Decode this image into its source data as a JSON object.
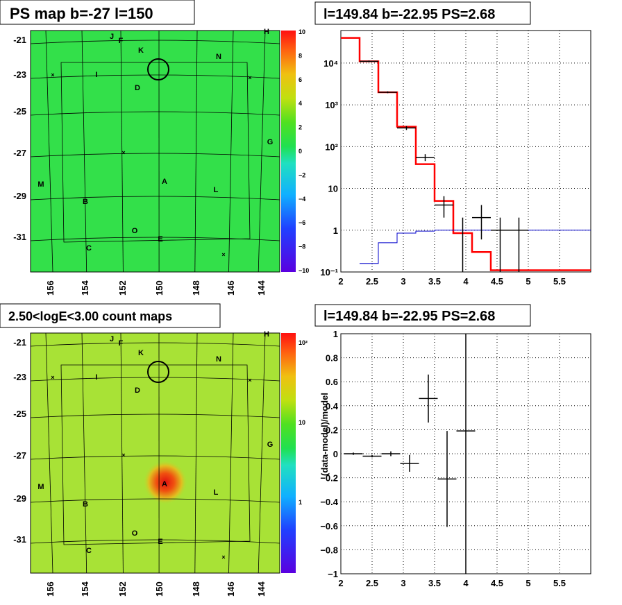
{
  "panels": {
    "tl_title": "PS map b=-27 l=150",
    "tr_title": "l=149.84 b=-22.95 PS=2.68",
    "bl_title": "2.50<logE<3.00 count maps",
    "br_title": "l=149.84 b=-22.95 PS=2.68"
  },
  "maps": {
    "lat_labels": [
      "-21",
      "-23",
      "-25",
      "-27",
      "-29",
      "-31"
    ],
    "lon_labels": [
      "156",
      "154",
      "152",
      "150",
      "148",
      "146",
      "144"
    ],
    "sources": [
      "J",
      "F",
      "K",
      "H",
      "N",
      "I",
      "D",
      "G",
      "M",
      "A",
      "L",
      "B",
      "O",
      "E",
      "C"
    ],
    "ps_scale": [
      "10",
      "8",
      "6",
      "4",
      "2",
      "0",
      "−2",
      "−4",
      "−6",
      "−8",
      "−10"
    ],
    "count_scale": [
      "10²",
      "10",
      "1"
    ],
    "colors": {
      "ps_bg": "#33e04a",
      "count_bg": "#a8e236",
      "hot": "#e8301a"
    }
  },
  "chart_data": [
    {
      "type": "line",
      "title": "l=149.84 b=-22.95 PS=2.68",
      "yscale": "log",
      "xlim": [
        2,
        6
      ],
      "ylim": [
        0.1,
        60000
      ],
      "xticks": [
        "2",
        "2.5",
        "3",
        "3.5",
        "4",
        "4.5",
        "5",
        "5.5"
      ],
      "yticks": [
        "10⁻¹",
        "1",
        "10",
        "10²",
        "10³",
        "10⁴"
      ],
      "series": [
        {
          "color": "#ff0000",
          "edges": [
            2,
            2.3,
            2.6,
            2.9,
            3.2,
            3.5,
            3.8,
            4.1,
            4.4,
            4.8,
            6
          ],
          "values": [
            40000,
            11000,
            2000,
            300,
            38,
            5,
            0.85,
            0.3,
            0.11,
            0.11
          ]
        },
        {
          "color": "#0000cc",
          "edges": [
            2.3,
            2.6,
            2.9,
            3.2,
            3.5,
            3.8,
            4.1,
            4.4,
            4.8,
            6
          ],
          "values": [
            0.16,
            0.5,
            0.85,
            0.95,
            1,
            1,
            1,
            1,
            1
          ]
        }
      ],
      "points": [
        {
          "x": 2.45,
          "y": 11000,
          "xerr": 0.15,
          "ylo": 10500,
          "yhi": 11500
        },
        {
          "x": 2.75,
          "y": 2000,
          "xerr": 0.15,
          "ylo": 1900,
          "yhi": 2100
        },
        {
          "x": 3.05,
          "y": 280,
          "xerr": 0.15,
          "ylo": 250,
          "yhi": 310
        },
        {
          "x": 3.35,
          "y": 55,
          "xerr": 0.15,
          "ylo": 45,
          "yhi": 66
        },
        {
          "x": 3.65,
          "y": 4,
          "xerr": 0.15,
          "ylo": 2,
          "yhi": 6.5
        },
        {
          "x": 3.95,
          "y": 0.1,
          "xerr": 0,
          "ylo": 0.1,
          "yhi": 2
        },
        {
          "x": 4.25,
          "y": 2,
          "xerr": 0.15,
          "ylo": 0.6,
          "yhi": 4
        },
        {
          "x": 4.55,
          "y": 1,
          "xerr": 0.15,
          "ylo": 0.1,
          "yhi": 2
        },
        {
          "x": 4.85,
          "y": 1,
          "xerr": 0.15,
          "ylo": 0.1,
          "yhi": 2
        }
      ]
    },
    {
      "type": "scatter",
      "title": "l=149.84 b=-22.95 PS=2.68",
      "ylabel": "(data-model)/model",
      "xlim": [
        2,
        6
      ],
      "ylim": [
        -1,
        1
      ],
      "xticks": [
        "2",
        "2.5",
        "3",
        "3.5",
        "4",
        "4.5",
        "5",
        "5.5"
      ],
      "yticks": [
        "−1",
        "−0.8",
        "−0.6",
        "−0.4",
        "−0.2",
        "0",
        "0.2",
        "0.4",
        "0.6",
        "0.8",
        "1"
      ],
      "points": [
        {
          "x": 2.2,
          "y": 0.0,
          "xerr": 0.15,
          "yerr": 0.01
        },
        {
          "x": 2.5,
          "y": -0.02,
          "xerr": 0.15,
          "yerr": 0.01
        },
        {
          "x": 2.8,
          "y": 0.0,
          "xerr": 0.15,
          "yerr": 0.02
        },
        {
          "x": 3.1,
          "y": -0.08,
          "xerr": 0.15,
          "yerr": 0.07
        },
        {
          "x": 3.4,
          "y": 0.46,
          "xerr": 0.15,
          "yerr": 0.2
        },
        {
          "x": 3.7,
          "y": -0.21,
          "xerr": 0.15,
          "yerr": 0.4
        },
        {
          "x": 4.0,
          "y": 0.19,
          "xerr": 0.15,
          "yerr": 1.3
        }
      ]
    }
  ]
}
